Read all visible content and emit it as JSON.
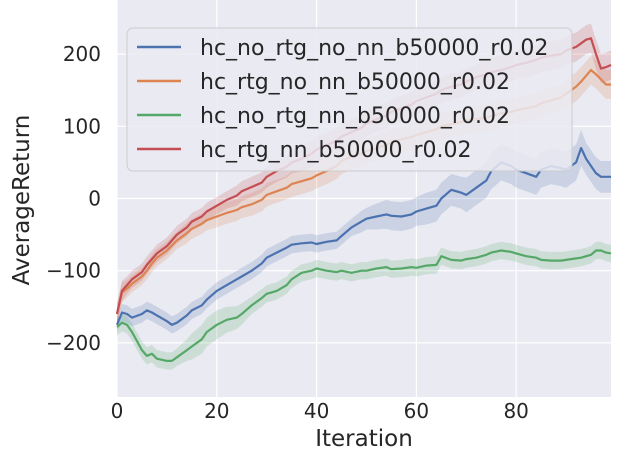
{
  "chart_data": {
    "type": "line",
    "xlabel": "Iteration",
    "ylabel": "AverageReturn",
    "xlim": [
      0,
      99
    ],
    "ylim": [
      -275,
      275
    ],
    "xticks": [
      "0",
      "20",
      "40",
      "60",
      "80"
    ],
    "yticks": [
      "−200",
      "−100",
      "0",
      "100",
      "200"
    ],
    "xtick_values": [
      0,
      20,
      40,
      60,
      80
    ],
    "ytick_values": [
      -200,
      -100,
      0,
      100,
      200
    ],
    "grid": true,
    "background": "#eaeaf2",
    "legend_position": "top",
    "x_points": [
      0,
      1,
      2,
      3,
      5,
      6,
      7,
      8,
      10,
      11,
      12,
      14,
      15,
      17,
      18,
      20,
      22,
      24,
      25,
      27,
      29,
      30,
      32,
      34,
      35,
      37,
      39,
      40,
      42,
      44,
      45,
      47,
      49,
      50,
      52,
      54,
      55,
      57,
      59,
      60,
      62,
      64,
      65,
      67,
      69,
      70,
      72,
      74,
      75,
      77,
      79,
      80,
      82,
      84,
      85,
      87,
      89,
      90,
      92,
      93,
      94,
      95,
      96,
      97,
      98,
      99
    ],
    "series": [
      {
        "name": "hc_no_rtg_no_nn_b50000_r0.02",
        "color": "#4c72b0",
        "values": [
          -175,
          -158,
          -160,
          -165,
          -160,
          -155,
          -158,
          -162,
          -170,
          -175,
          -172,
          -162,
          -155,
          -148,
          -140,
          -128,
          -120,
          -112,
          -108,
          -100,
          -90,
          -82,
          -75,
          -68,
          -64,
          -62,
          -61,
          -63,
          -60,
          -58,
          -52,
          -40,
          -32,
          -28,
          -25,
          -22,
          -24,
          -25,
          -22,
          -18,
          -14,
          -10,
          0,
          12,
          8,
          5,
          15,
          25,
          38,
          50,
          45,
          40,
          35,
          30,
          40,
          45,
          42,
          40,
          50,
          70,
          55,
          45,
          35,
          30,
          30,
          30
        ],
        "band": [
          10,
          12,
          12,
          12,
          12,
          12,
          12,
          12,
          12,
          12,
          12,
          12,
          12,
          12,
          12,
          12,
          12,
          12,
          12,
          12,
          12,
          12,
          12,
          12,
          12,
          12,
          12,
          12,
          12,
          12,
          12,
          12,
          15,
          15,
          18,
          20,
          20,
          20,
          20,
          20,
          22,
          22,
          22,
          22,
          22,
          24,
          24,
          24,
          25,
          25,
          25,
          25,
          25,
          25,
          25,
          25,
          25,
          25,
          25,
          25,
          22,
          22,
          22,
          22,
          22,
          22
        ]
      },
      {
        "name": "hc_rtg_no_nn_b50000_r0.02",
        "color": "#dd8452",
        "values": [
          -160,
          -130,
          -125,
          -118,
          -108,
          -100,
          -90,
          -82,
          -72,
          -65,
          -58,
          -48,
          -42,
          -35,
          -30,
          -25,
          -20,
          -16,
          -12,
          -8,
          -2,
          5,
          10,
          15,
          20,
          24,
          28,
          32,
          38,
          45,
          52,
          58,
          62,
          66,
          70,
          74,
          78,
          82,
          85,
          88,
          92,
          96,
          100,
          103,
          106,
          108,
          110,
          112,
          114,
          118,
          120,
          122,
          125,
          128,
          132,
          136,
          140,
          145,
          155,
          162,
          170,
          178,
          172,
          165,
          158,
          158
        ],
        "band": [
          15,
          14,
          12,
          12,
          12,
          12,
          12,
          12,
          12,
          12,
          12,
          14,
          14,
          14,
          14,
          15,
          15,
          15,
          15,
          16,
          16,
          16,
          16,
          16,
          18,
          18,
          18,
          18,
          18,
          18,
          18,
          18,
          18,
          18,
          18,
          18,
          18,
          18,
          18,
          18,
          18,
          18,
          18,
          18,
          18,
          18,
          18,
          18,
          18,
          18,
          18,
          18,
          18,
          18,
          18,
          18,
          18,
          20,
          20,
          20,
          20,
          20,
          20,
          20,
          20,
          20
        ]
      },
      {
        "name": "hc_no_rtg_nn_b50000_r0.02",
        "color": "#55a868",
        "values": [
          -178,
          -172,
          -175,
          -185,
          -210,
          -218,
          -215,
          -222,
          -225,
          -225,
          -220,
          -210,
          -205,
          -195,
          -185,
          -175,
          -168,
          -165,
          -160,
          -148,
          -138,
          -132,
          -128,
          -120,
          -112,
          -103,
          -100,
          -97,
          -100,
          -102,
          -100,
          -103,
          -100,
          -100,
          -97,
          -95,
          -98,
          -97,
          -95,
          -96,
          -93,
          -92,
          -80,
          -85,
          -86,
          -84,
          -82,
          -78,
          -75,
          -72,
          -74,
          -76,
          -80,
          -82,
          -85,
          -86,
          -86,
          -85,
          -83,
          -82,
          -80,
          -78,
          -72,
          -72,
          -75,
          -76
        ],
        "band": [
          12,
          12,
          12,
          12,
          12,
          12,
          12,
          12,
          12,
          12,
          12,
          15,
          18,
          20,
          20,
          20,
          18,
          16,
          15,
          12,
          12,
          12,
          12,
          12,
          12,
          12,
          12,
          12,
          12,
          12,
          12,
          12,
          12,
          12,
          12,
          12,
          12,
          12,
          12,
          12,
          12,
          12,
          12,
          12,
          12,
          12,
          12,
          12,
          12,
          12,
          12,
          12,
          12,
          12,
          12,
          12,
          12,
          12,
          12,
          12,
          12,
          12,
          12,
          12,
          12,
          12
        ]
      },
      {
        "name": "hc_rtg_nn_b50000_r0.02",
        "color": "#c44e52",
        "values": [
          -160,
          -128,
          -120,
          -112,
          -102,
          -92,
          -84,
          -76,
          -66,
          -58,
          -50,
          -40,
          -32,
          -25,
          -18,
          -10,
          -2,
          4,
          10,
          16,
          22,
          30,
          38,
          44,
          50,
          55,
          62,
          68,
          74,
          80,
          86,
          92,
          98,
          104,
          110,
          115,
          120,
          125,
          130,
          135,
          140,
          145,
          150,
          155,
          158,
          162,
          168,
          172,
          175,
          178,
          182,
          185,
          188,
          192,
          195,
          198,
          200,
          205,
          210,
          215,
          220,
          222,
          200,
          180,
          182,
          185
        ],
        "band": [
          15,
          14,
          12,
          12,
          12,
          12,
          12,
          12,
          12,
          12,
          12,
          12,
          12,
          12,
          12,
          12,
          12,
          14,
          14,
          14,
          14,
          15,
          15,
          15,
          15,
          18,
          18,
          18,
          18,
          18,
          18,
          18,
          18,
          18,
          18,
          18,
          18,
          18,
          18,
          18,
          18,
          18,
          18,
          18,
          18,
          18,
          18,
          20,
          20,
          20,
          20,
          20,
          20,
          20,
          20,
          20,
          20,
          20,
          20,
          20,
          20,
          20,
          20,
          20,
          20,
          20
        ]
      }
    ]
  }
}
